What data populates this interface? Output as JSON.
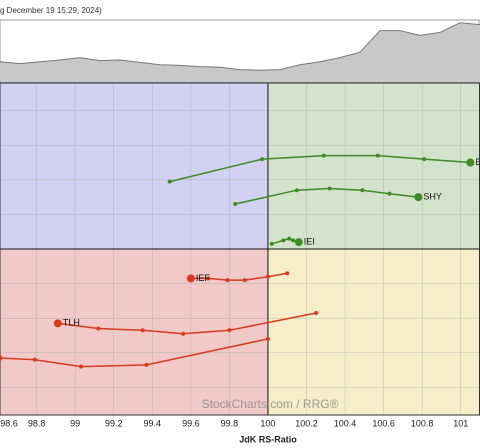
{
  "header": {
    "text": "g December 19 15:29, 2024)"
  },
  "chart_data": [
    {
      "type": "area",
      "color": "#c8c8c8",
      "line_color": "#777777",
      "ylim": [
        0,
        100
      ],
      "values": [
        32,
        29,
        32,
        35,
        39,
        34,
        35,
        31,
        27,
        26,
        24,
        23,
        19,
        18,
        19,
        27,
        32,
        39,
        48,
        84,
        84,
        76,
        81,
        97,
        94
      ]
    },
    {
      "type": "rrg",
      "x_label": "JdK RS-Ratio",
      "watermark": "StockCharts.com / RRG®",
      "xlim": [
        98.61,
        101.1
      ],
      "ylim": [
        99.04,
        100.96
      ],
      "xticks": [
        98.6,
        98.8,
        {
          "value": 99,
          "label": "99"
        },
        99.2,
        99.4,
        99.6,
        99.8,
        100,
        100.2,
        100.4,
        100.6,
        100.8,
        101
      ],
      "yticks": [
        99.2,
        99.4,
        99.6,
        99.8,
        100,
        100.2,
        100.4,
        100.6,
        100.8
      ],
      "grid": true,
      "quadrant_colors": {
        "leading": "#d4e3cb",
        "weakening": "#f5eec9",
        "lagging": "#f2c9c9",
        "improving": "#d2d1f1"
      },
      "series": [
        {
          "name": "B",
          "color": "#3d8a26",
          "x": [
            99.49,
            99.97,
            100.29,
            100.57,
            100.81,
            101.05
          ],
          "y": [
            100.39,
            100.52,
            100.54,
            100.54,
            100.52,
            100.5
          ]
        },
        {
          "name": "SHY",
          "color": "#3d8a26",
          "x": [
            99.83,
            100.15,
            100.32,
            100.49,
            100.63,
            100.78
          ],
          "y": [
            100.26,
            100.34,
            100.35,
            100.34,
            100.32,
            100.3
          ]
        },
        {
          "name": "IEI",
          "color": "#3d8a26",
          "x": [
            100.02,
            100.08,
            100.11,
            100.13,
            100.16
          ],
          "y": [
            100.03,
            100.05,
            100.06,
            100.05,
            100.04
          ]
        },
        {
          "name": "IEF",
          "color": "#d63a1f",
          "x": [
            100.1,
            100.0,
            99.88,
            99.79,
            99.69,
            99.6
          ],
          "y": [
            99.86,
            99.84,
            99.82,
            99.82,
            99.83,
            99.83
          ]
        },
        {
          "name": "TLH",
          "color": "#d63a1f",
          "x": [
            100.25,
            99.8,
            99.56,
            99.35,
            99.12,
            98.91
          ],
          "y": [
            99.63,
            99.53,
            99.51,
            99.53,
            99.54,
            99.57
          ]
        },
        {
          "color": "#d63a1f",
          "x": [
            100.0,
            99.37,
            99.03,
            98.79,
            98.6
          ],
          "y": [
            99.48,
            99.33,
            99.32,
            99.36,
            99.37
          ]
        }
      ]
    }
  ]
}
